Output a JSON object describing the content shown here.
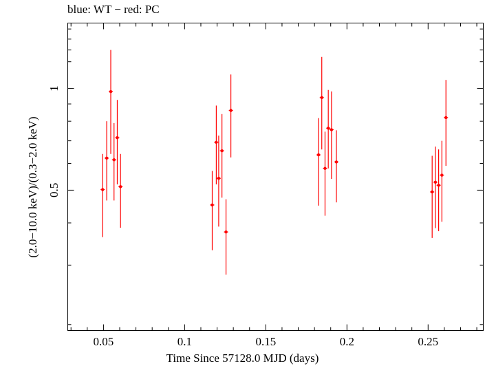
{
  "chart_data": {
    "type": "scatter",
    "title": "blue: WT − red: PC",
    "xlabel": "Time Since 57128.0 MJD (days)",
    "ylabel": "(2.0−10.0 keV)/(0.3−2.0 keV)",
    "xlim": [
      0.028,
      0.284
    ],
    "ylim": [
      0.192,
      1.562
    ],
    "log_y": true,
    "grid": false,
    "xticks": [
      0.05,
      0.1,
      0.15,
      0.2,
      0.25
    ],
    "xtick_labels": [
      "0.05",
      "0.1",
      "0.15",
      "0.2",
      "0.25"
    ],
    "yticks": [
      0.5,
      1
    ],
    "ytick_labels": [
      "0.5",
      "1"
    ],
    "series": [
      {
        "name": "PC",
        "color": "#ff0000",
        "points": [
          {
            "x": 0.0495,
            "y": 0.502,
            "ylo": 0.363,
            "yhi": 0.64
          },
          {
            "x": 0.052,
            "y": 0.622,
            "ylo": 0.466,
            "yhi": 0.8
          },
          {
            "x": 0.0545,
            "y": 0.979,
            "ylo": 0.64,
            "yhi": 1.3
          },
          {
            "x": 0.0565,
            "y": 0.615,
            "ylo": 0.466,
            "yhi": 0.79
          },
          {
            "x": 0.0585,
            "y": 0.715,
            "ylo": 0.52,
            "yhi": 0.925
          },
          {
            "x": 0.0605,
            "y": 0.512,
            "ylo": 0.387,
            "yhi": 0.64
          },
          {
            "x": 0.117,
            "y": 0.452,
            "ylo": 0.332,
            "yhi": 0.57
          },
          {
            "x": 0.1195,
            "y": 0.693,
            "ylo": 0.52,
            "yhi": 0.89
          },
          {
            "x": 0.121,
            "y": 0.542,
            "ylo": 0.39,
            "yhi": 0.725
          },
          {
            "x": 0.123,
            "y": 0.654,
            "ylo": 0.475,
            "yhi": 0.84
          },
          {
            "x": 0.1255,
            "y": 0.376,
            "ylo": 0.281,
            "yhi": 0.47
          },
          {
            "x": 0.1285,
            "y": 0.861,
            "ylo": 0.625,
            "yhi": 1.1
          },
          {
            "x": 0.1825,
            "y": 0.636,
            "ylo": 0.45,
            "yhi": 0.817
          },
          {
            "x": 0.1845,
            "y": 0.94,
            "ylo": 0.66,
            "yhi": 1.24
          },
          {
            "x": 0.1865,
            "y": 0.58,
            "ylo": 0.42,
            "yhi": 0.745
          },
          {
            "x": 0.1885,
            "y": 0.763,
            "ylo": 0.58,
            "yhi": 0.99
          },
          {
            "x": 0.1905,
            "y": 0.755,
            "ylo": 0.54,
            "yhi": 0.98
          },
          {
            "x": 0.1935,
            "y": 0.606,
            "ylo": 0.46,
            "yhi": 0.752
          },
          {
            "x": 0.2525,
            "y": 0.494,
            "ylo": 0.361,
            "yhi": 0.632
          },
          {
            "x": 0.2545,
            "y": 0.528,
            "ylo": 0.386,
            "yhi": 0.673
          },
          {
            "x": 0.2565,
            "y": 0.517,
            "ylo": 0.378,
            "yhi": 0.66
          },
          {
            "x": 0.2585,
            "y": 0.554,
            "ylo": 0.403,
            "yhi": 0.7
          },
          {
            "x": 0.261,
            "y": 0.82,
            "ylo": 0.59,
            "yhi": 1.06
          }
        ]
      }
    ]
  }
}
